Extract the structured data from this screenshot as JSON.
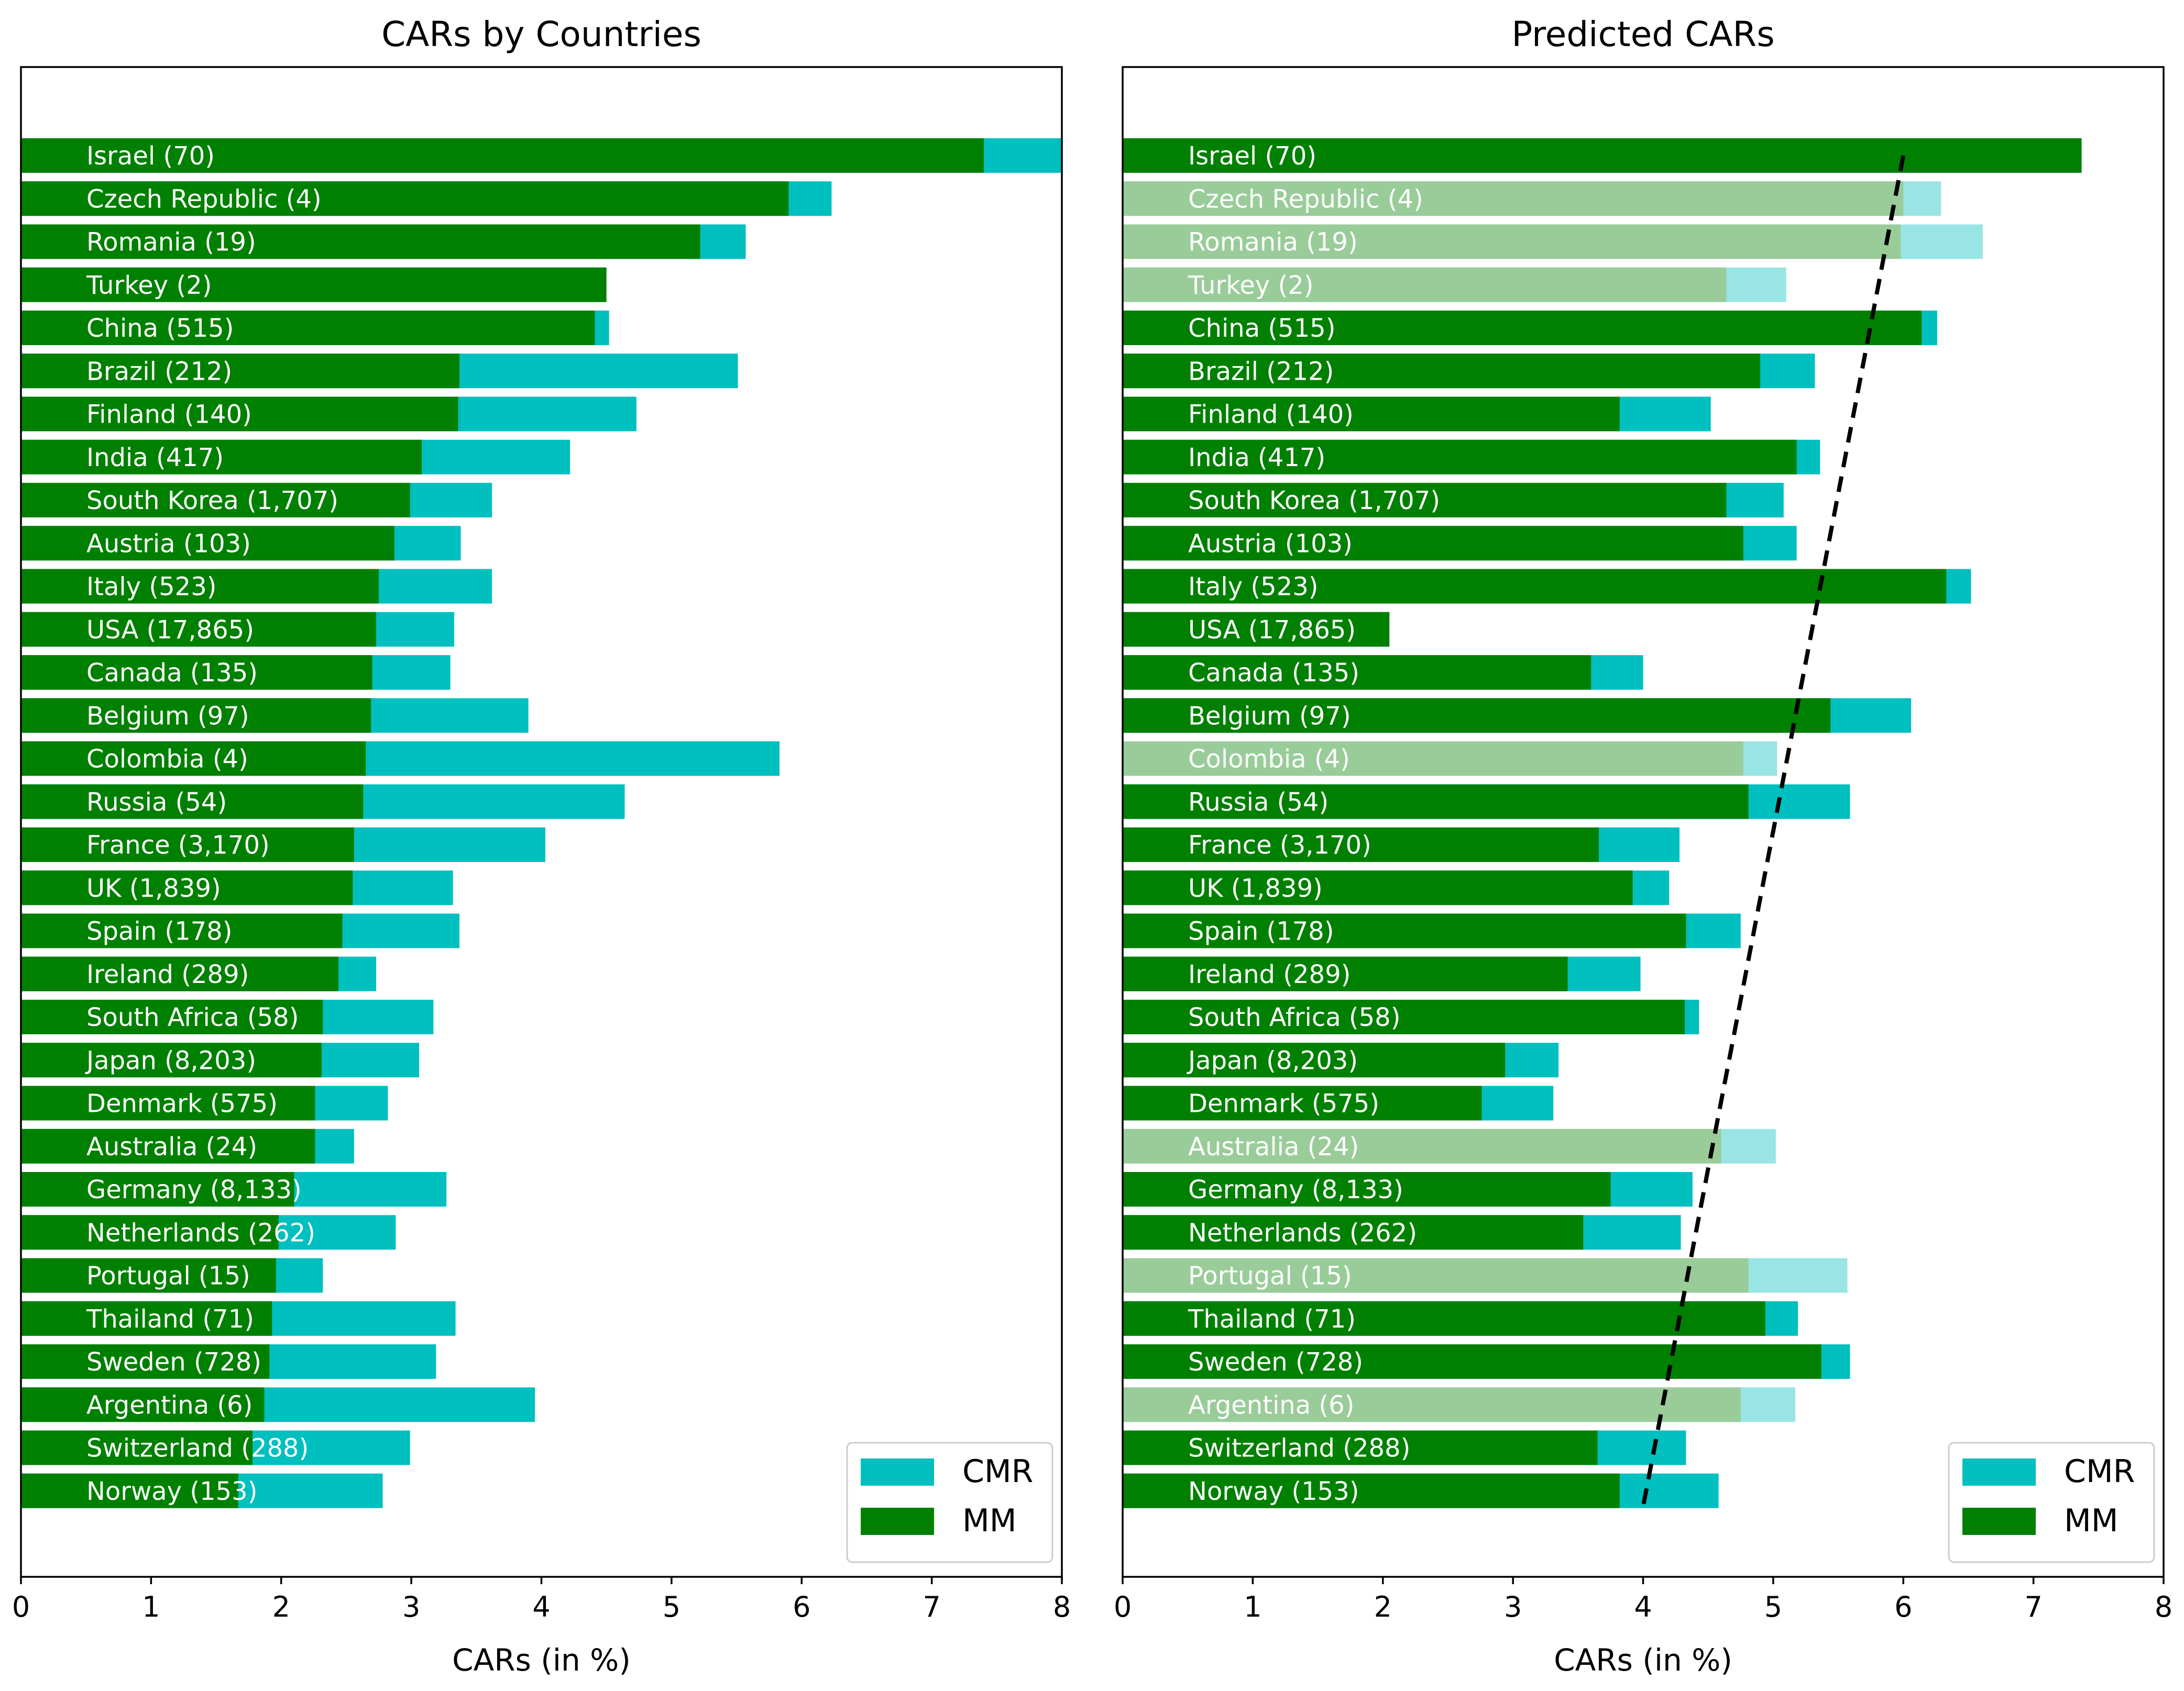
{
  "chart_data": [
    {
      "type": "bar",
      "orientation": "horizontal",
      "stacked": "overlay",
      "title": "CARs by Countries",
      "xlabel": "CARs (in %)",
      "ylabel": "",
      "xlim": [
        0,
        8
      ],
      "xticks": [
        0,
        1,
        2,
        3,
        4,
        5,
        6,
        7,
        8
      ],
      "legend_position": "bottom-right",
      "categories": [
        "Israel (70)",
        "Czech Republic (4)",
        "Romania (19)",
        "Turkey (2)",
        "China (515)",
        "Brazil (212)",
        "Finland (140)",
        "India (417)",
        "South Korea (1,707)",
        "Austria (103)",
        "Italy (523)",
        "USA (17,865)",
        "Canada (135)",
        "Belgium (97)",
        "Colombia (4)",
        "Russia (54)",
        "France (3,170)",
        "UK (1,839)",
        "Spain (178)",
        "Ireland (289)",
        "South Africa (58)",
        "Japan (8,203)",
        "Denmark (575)",
        "Australia (24)",
        "Germany (8,133)",
        "Netherlands (262)",
        "Portugal (15)",
        "Thailand (71)",
        "Sweden (728)",
        "Argentina (6)",
        "Switzerland (288)",
        "Norway (153)"
      ],
      "series": [
        {
          "name": "CMR",
          "color": "#00bfbf",
          "values": [
            8.0,
            6.23,
            5.57,
            4.48,
            4.52,
            5.51,
            4.73,
            4.22,
            3.62,
            3.38,
            3.62,
            3.33,
            3.3,
            3.9,
            5.83,
            4.64,
            4.03,
            3.32,
            3.37,
            2.73,
            3.17,
            3.06,
            2.82,
            2.56,
            3.27,
            2.88,
            2.32,
            3.34,
            3.19,
            3.95,
            2.99,
            2.78
          ]
        },
        {
          "name": "MM",
          "color": "#008000",
          "values": [
            7.4,
            5.9,
            5.22,
            4.5,
            4.41,
            3.37,
            3.36,
            3.08,
            2.99,
            2.87,
            2.75,
            2.73,
            2.7,
            2.69,
            2.65,
            2.63,
            2.56,
            2.55,
            2.47,
            2.44,
            2.32,
            2.31,
            2.26,
            2.26,
            2.1,
            1.98,
            1.96,
            1.93,
            1.91,
            1.87,
            1.78,
            1.67
          ]
        }
      ]
    },
    {
      "type": "bar",
      "orientation": "horizontal",
      "stacked": "overlay",
      "title": "Predicted CARs",
      "xlabel": "CARs (in %)",
      "ylabel": "",
      "xlim": [
        0,
        8
      ],
      "xticks": [
        0,
        1,
        2,
        3,
        4,
        5,
        6,
        7,
        8
      ],
      "legend_position": "bottom-right",
      "categories": [
        "Israel (70)",
        "Czech Republic (4)",
        "Romania (19)",
        "Turkey (2)",
        "China (515)",
        "Brazil (212)",
        "Finland (140)",
        "India (417)",
        "South Korea (1,707)",
        "Austria (103)",
        "Italy (523)",
        "USA (17,865)",
        "Canada (135)",
        "Belgium (97)",
        "Colombia (4)",
        "Russia (54)",
        "France (3,170)",
        "UK (1,839)",
        "Spain (178)",
        "Ireland (289)",
        "South Africa (58)",
        "Japan (8,203)",
        "Denmark (575)",
        "Australia (24)",
        "Germany (8,133)",
        "Netherlands (262)",
        "Portugal (15)",
        "Thailand (71)",
        "Sweden (728)",
        "Argentina (6)",
        "Switzerland (288)",
        "Norway (153)"
      ],
      "faded": [
        false,
        true,
        true,
        true,
        false,
        false,
        false,
        false,
        false,
        false,
        false,
        false,
        false,
        false,
        true,
        false,
        false,
        false,
        false,
        false,
        false,
        false,
        false,
        true,
        false,
        false,
        true,
        false,
        false,
        true,
        false,
        false
      ],
      "faded_colors": {
        "CMR": "#99e5e5",
        "MM": "#99cc99"
      },
      "series": [
        {
          "name": "CMR",
          "color": "#00bfbf",
          "values": [
            7.37,
            6.29,
            6.61,
            5.1,
            6.26,
            5.32,
            4.52,
            5.36,
            5.08,
            5.18,
            6.52,
            2.05,
            4.0,
            6.06,
            5.03,
            5.59,
            4.28,
            4.2,
            4.75,
            3.98,
            4.43,
            3.35,
            3.31,
            5.02,
            4.38,
            4.29,
            5.57,
            5.19,
            5.59,
            5.17,
            4.33,
            4.58
          ]
        },
        {
          "name": "MM",
          "color": "#008000",
          "values": [
            7.37,
            6.0,
            5.98,
            4.64,
            6.14,
            4.9,
            3.82,
            5.18,
            4.64,
            4.77,
            6.33,
            2.05,
            3.6,
            5.44,
            4.77,
            4.81,
            3.66,
            3.92,
            4.33,
            3.42,
            4.32,
            2.94,
            2.76,
            4.6,
            3.75,
            3.54,
            4.81,
            4.94,
            5.37,
            4.75,
            3.65,
            3.82
          ]
        }
      ],
      "trend_line": {
        "style": "dashed",
        "color": "#000000",
        "x_start": 6.0,
        "x_end": 4.0,
        "from_category": "Israel (70)",
        "to_category": "Norway (153)"
      }
    }
  ]
}
